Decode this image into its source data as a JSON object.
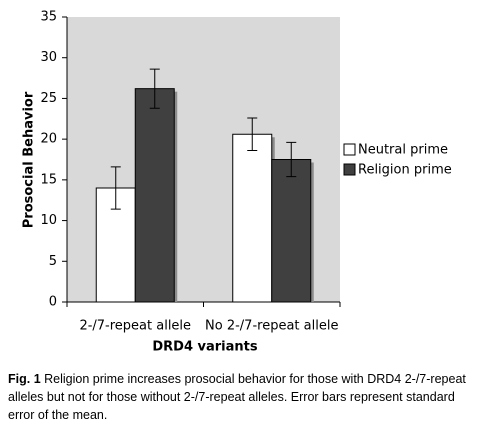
{
  "chart_data": {
    "type": "bar",
    "ylabel": "Prosocial Behavior",
    "xlabel": "DRD4 variants",
    "categories": [
      "2-/7-repeat allele",
      "No 2-/7-repeat allele"
    ],
    "series": [
      {
        "name": "Neutral prime",
        "color": "#ffffff",
        "values": [
          14.0,
          20.6
        ],
        "errors": [
          2.6,
          2.0
        ]
      },
      {
        "name": "Religion prime",
        "color": "#404040",
        "values": [
          26.2,
          17.5
        ],
        "errors": [
          2.4,
          2.1
        ]
      }
    ],
    "ylim": [
      0,
      35
    ],
    "yticks": [
      0,
      5,
      10,
      15,
      20,
      25,
      30,
      35
    ],
    "grid": false,
    "legend": "right",
    "background": "#d9d9d9"
  },
  "caption": {
    "label": "Fig. 1",
    "text": "Religion prime increases prosocial behavior for those with DRD4 2-/7-repeat alleles but not for those without 2-/7-repeat alleles. Error bars represent standard error of the mean."
  }
}
